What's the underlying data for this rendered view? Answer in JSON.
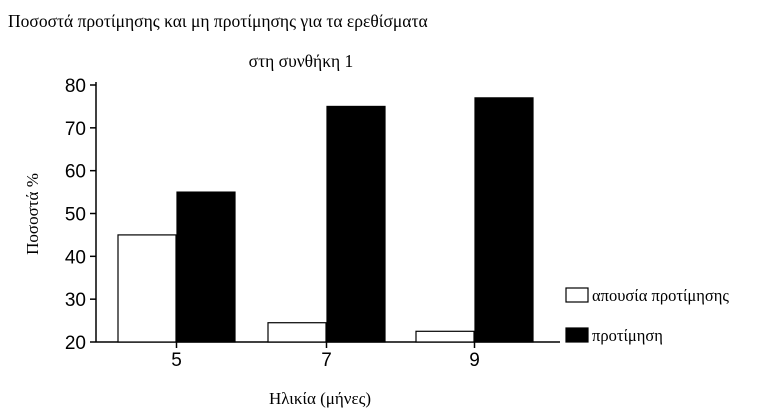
{
  "chart_data": {
    "type": "bar",
    "title": "Ποσοστά προτίμησης και μη προτίμησης για τα ερεθίσματα",
    "subtitle": "στη συνθήκη 1",
    "xlabel": "Ηλικία (μήνες)",
    "ylabel": "Ποσοστά %",
    "categories": [
      "5",
      "7",
      "9"
    ],
    "ylim": [
      20,
      80
    ],
    "yticks": [
      "20",
      "30",
      "40",
      "50",
      "60",
      "70",
      "80"
    ],
    "grid": false,
    "legend_position": "right",
    "series": [
      {
        "name": "απουσία προτίμησης",
        "values": [
          45,
          24.5,
          22.5
        ],
        "color": "#ffffff"
      },
      {
        "name": "προτίμηση",
        "values": [
          55,
          75,
          77
        ],
        "color": "#000000"
      }
    ]
  }
}
